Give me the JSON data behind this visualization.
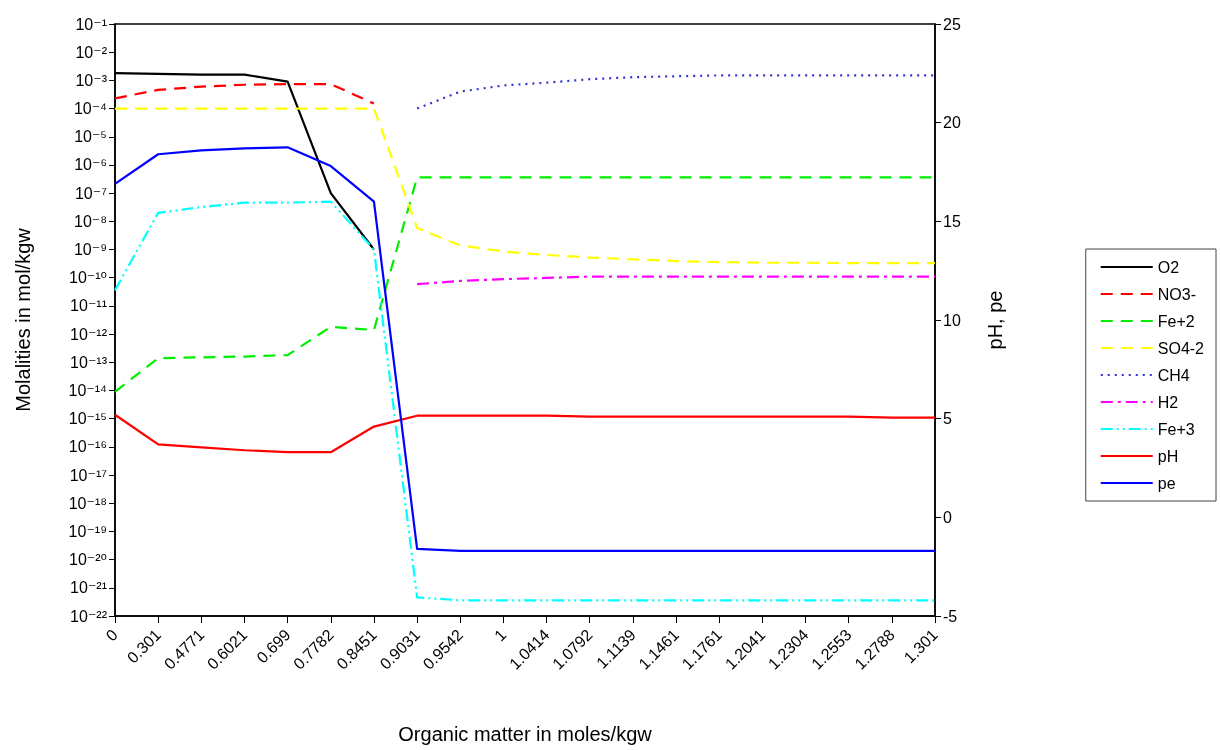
{
  "chart_data": {
    "type": "line",
    "xlabel": "Organic matter in moles/kgw",
    "ylabel": "Molalities in mol/kgw",
    "y2label": "pH, pe",
    "categories": [
      "0",
      "0.301",
      "0.4771",
      "0.6021",
      "0.699",
      "0.7782",
      "0.8451",
      "0.9031",
      "0.9542",
      "1",
      "1.0414",
      "1.0792",
      "1.1139",
      "1.1461",
      "1.1761",
      "1.2041",
      "1.2304",
      "1.2553",
      "1.2788",
      "1.301"
    ],
    "log": "y",
    "ylim": [
      1e-22,
      0.1
    ],
    "yticks": [
      {
        "value": 1e-22,
        "label": "10⁻²²"
      },
      {
        "value": 1e-21,
        "label": "10⁻²¹"
      },
      {
        "value": 1e-20,
        "label": "10⁻²⁰"
      },
      {
        "value": 1e-19,
        "label": "10⁻¹⁹"
      },
      {
        "value": 1e-18,
        "label": "10⁻¹⁸"
      },
      {
        "value": 1e-17,
        "label": "10⁻¹⁷"
      },
      {
        "value": 1e-16,
        "label": "10⁻¹⁶"
      },
      {
        "value": 1e-15,
        "label": "10⁻¹⁵"
      },
      {
        "value": 1e-14,
        "label": "10⁻¹⁴"
      },
      {
        "value": 1e-13,
        "label": "10⁻¹³"
      },
      {
        "value": 1e-12,
        "label": "10⁻¹²"
      },
      {
        "value": 1e-11,
        "label": "10⁻¹¹"
      },
      {
        "value": 1e-10,
        "label": "10⁻¹⁰"
      },
      {
        "value": 1e-09,
        "label": "10⁻⁹"
      },
      {
        "value": 1e-08,
        "label": "10⁻⁸"
      },
      {
        "value": 1e-07,
        "label": "10⁻⁷"
      },
      {
        "value": 1e-06,
        "label": "10⁻⁶"
      },
      {
        "value": 1e-05,
        "label": "10⁻⁵"
      },
      {
        "value": 0.0001,
        "label": "10⁻⁴"
      },
      {
        "value": 0.001,
        "label": "10⁻³"
      },
      {
        "value": 0.01,
        "label": "10⁻²"
      },
      {
        "value": 0.1,
        "label": "10⁻¹"
      }
    ],
    "y2lim": [
      -5,
      25
    ],
    "y2ticks": [
      -5,
      0,
      5,
      10,
      15,
      20,
      25
    ],
    "grid": false,
    "legend": "right",
    "marker": "none",
    "series": [
      {
        "name": "O2",
        "color": "#000000",
        "line_style": "solid",
        "values": [
          0.0018,
          0.0017,
          0.0016,
          0.0016,
          0.0009,
          1e-07,
          1e-09,
          null,
          null,
          null,
          null,
          null,
          null,
          null,
          null,
          null,
          null,
          null,
          null,
          null
        ]
      },
      {
        "name": "NO3-",
        "color": "#ff0000",
        "line_style": "dashed",
        "values": [
          0.00023,
          0.00046,
          0.0006,
          0.0007,
          0.00074,
          0.00074,
          0.00015,
          null,
          null,
          null,
          null,
          null,
          null,
          null,
          null,
          null,
          null,
          null,
          null,
          null
        ]
      },
      {
        "name": "Fe+2",
        "color": "#00ee00",
        "line_style": "dashed",
        "values": [
          9e-15,
          1.4e-13,
          1.5e-13,
          1.6e-13,
          1.8e-13,
          1.8e-12,
          1.4e-12,
          3.6e-07,
          3.6e-07,
          3.6e-07,
          3.6e-07,
          3.6e-07,
          3.6e-07,
          3.6e-07,
          3.6e-07,
          3.6e-07,
          3.6e-07,
          3.6e-07,
          3.6e-07,
          3.6e-07
        ]
      },
      {
        "name": "SO4-2",
        "color": "#ffff00",
        "line_style": "dashed",
        "values": [
          0.0001,
          0.0001,
          0.0001,
          0.0001,
          0.0001,
          0.0001,
          0.0001,
          5.8e-09,
          1.4e-09,
          8.5e-10,
          6.4e-10,
          5.2e-10,
          4.5e-10,
          3.9e-10,
          3.6e-10,
          3.4e-10,
          3.4e-10,
          3.3e-10,
          3.3e-10,
          3.3e-10
        ]
      },
      {
        "name": "CH4",
        "color": "#3333cc",
        "line_style": "dotted",
        "values": [
          null,
          null,
          null,
          null,
          null,
          null,
          null,
          0.0001,
          0.0004,
          0.00066,
          0.00083,
          0.0011,
          0.0013,
          0.0014,
          0.0015,
          0.0015,
          0.0015,
          0.0015,
          0.0015,
          0.0015
        ]
      },
      {
        "name": "H2",
        "color": "#ff00ff",
        "line_style": "dashdot",
        "values": [
          null,
          null,
          null,
          null,
          null,
          null,
          null,
          5.9e-11,
          7.7e-11,
          8.9e-11,
          9.8e-11,
          1.1e-10,
          1.1e-10,
          1.1e-10,
          1.1e-10,
          1.1e-10,
          1.1e-10,
          1.1e-10,
          1.1e-10,
          1.1e-10
        ]
      },
      {
        "name": "Fe+3",
        "color": "#00ffff",
        "line_style": "dashdotdot",
        "values": [
          3.6e-11,
          2e-08,
          3.2e-08,
          4.6e-08,
          4.6e-08,
          5e-08,
          1e-09,
          4.6e-22,
          3.6e-22,
          3.6e-22,
          3.6e-22,
          3.6e-22,
          3.6e-22,
          3.6e-22,
          3.6e-22,
          3.6e-22,
          3.6e-22,
          3.6e-22,
          3.6e-22,
          3.6e-22
        ]
      },
      {
        "name": "pH",
        "color": "#ff0000",
        "line_style": "solid",
        "axis": "y2",
        "values": [
          5.2,
          3.7,
          3.55,
          3.4,
          3.3,
          3.3,
          4.6,
          5.15,
          5.15,
          5.15,
          5.15,
          5.1,
          5.1,
          5.1,
          5.1,
          5.1,
          5.1,
          5.1,
          5.05,
          5.05
        ]
      },
      {
        "name": "pe",
        "color": "#0000ff",
        "line_style": "solid",
        "axis": "y2",
        "values": [
          16.9,
          18.4,
          18.6,
          18.7,
          18.75,
          17.8,
          16.0,
          -1.6,
          -1.7,
          -1.7,
          -1.7,
          -1.7,
          -1.7,
          -1.7,
          -1.7,
          -1.7,
          -1.7,
          -1.7,
          -1.7,
          -1.7
        ]
      }
    ]
  }
}
